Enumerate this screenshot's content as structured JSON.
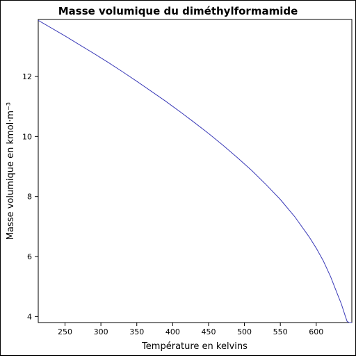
{
  "chart_data": {
    "type": "line",
    "title": "Masse volumique du diméthylformamide",
    "xlabel": "Température en kelvins",
    "ylabel": "Masse volumique en kmol·m⁻³",
    "xlim": [
      212.7,
      649.6
    ],
    "ylim": [
      3.8,
      13.9
    ],
    "xticks": [
      250,
      300,
      350,
      400,
      450,
      500,
      550,
      600
    ],
    "yticks": [
      4,
      6,
      8,
      10,
      12
    ],
    "grid": false,
    "color": "#3a3ab8",
    "series": [
      {
        "x": [
          212.7,
          230,
          250,
          270,
          290,
          310,
          330,
          350,
          370,
          390,
          410,
          430,
          450,
          470,
          490,
          510,
          530,
          550,
          570,
          590,
          600,
          610,
          620,
          630,
          635,
          640,
          643,
          646,
          648,
          649.6
        ],
        "y": [
          13.87,
          13.63,
          13.35,
          13.06,
          12.77,
          12.47,
          12.16,
          11.84,
          11.51,
          11.18,
          10.83,
          10.47,
          10.1,
          9.71,
          9.3,
          8.87,
          8.4,
          7.9,
          7.33,
          6.66,
          6.28,
          5.85,
          5.33,
          4.72,
          4.42,
          4.05,
          3.84,
          3.8,
          3.8,
          3.8
        ]
      }
    ]
  }
}
